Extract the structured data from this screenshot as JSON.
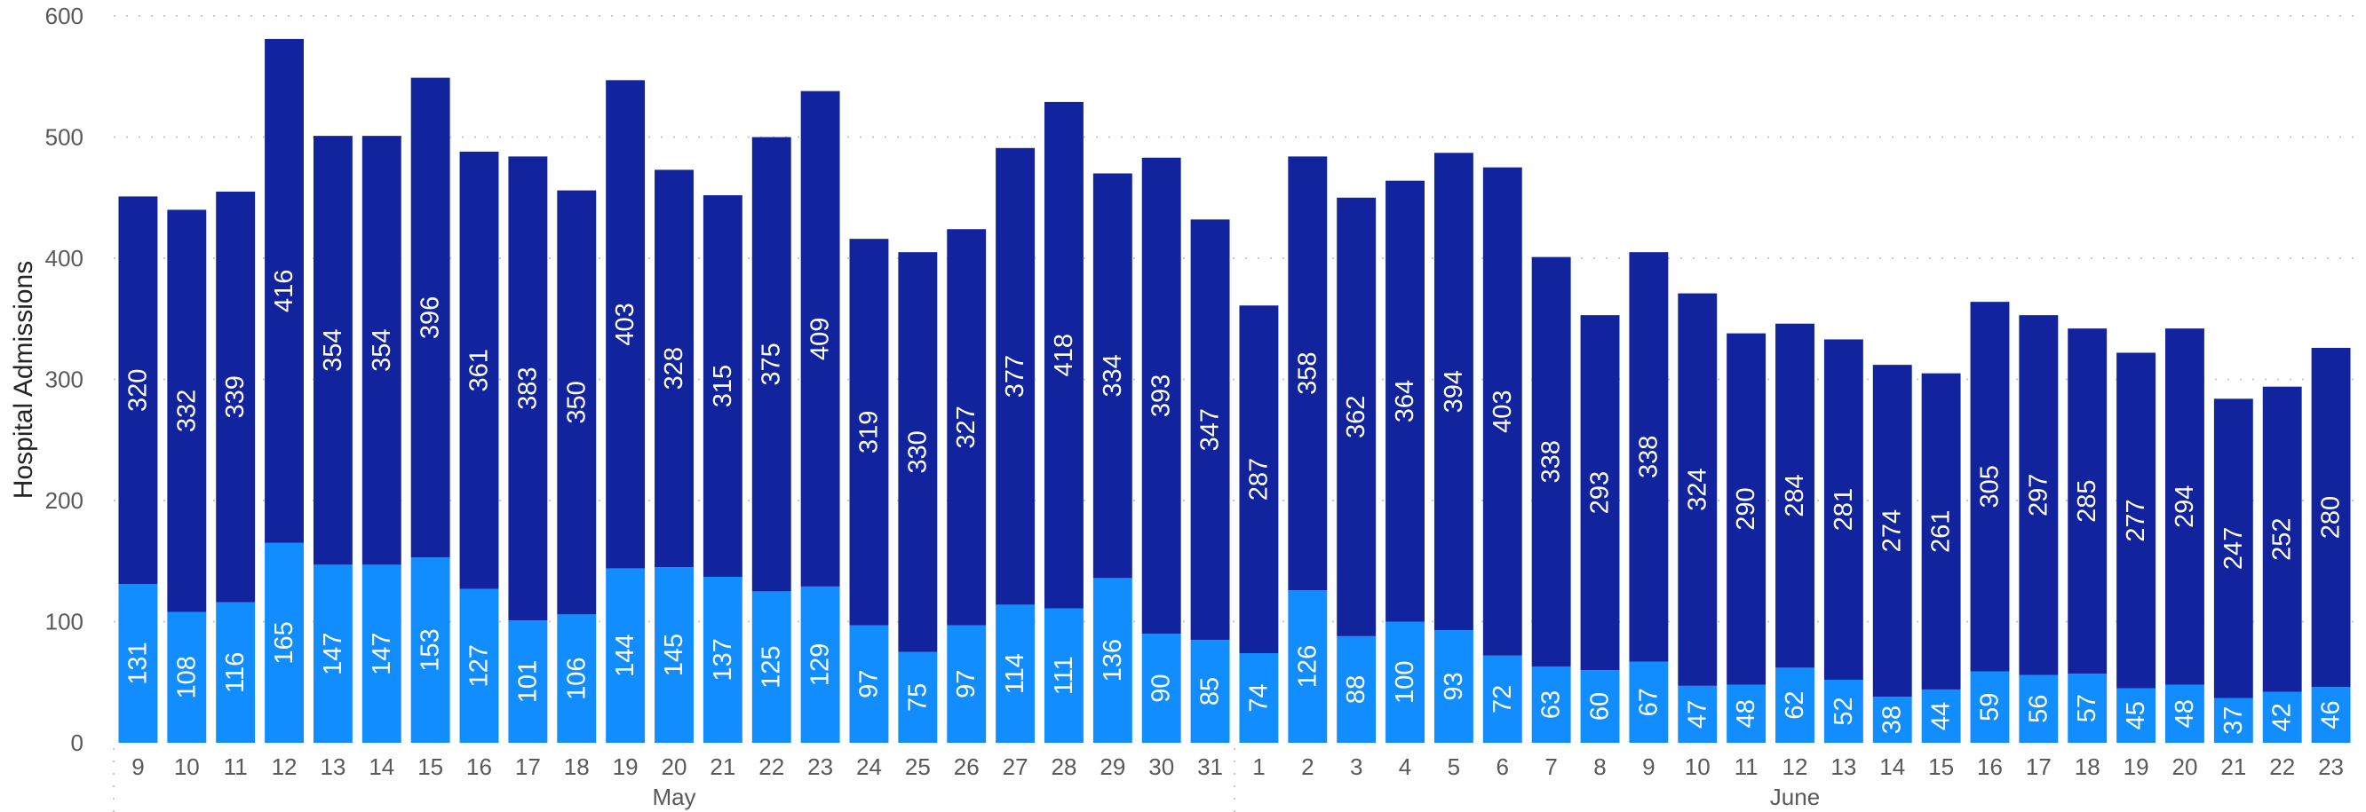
{
  "chart_data": {
    "type": "bar",
    "stacked": true,
    "title": "",
    "xlabel": "",
    "ylabel": "Hospital Admissions",
    "ylim": [
      0,
      600
    ],
    "yticks": [
      0,
      100,
      200,
      300,
      400,
      500,
      600
    ],
    "grid": true,
    "legend": "none",
    "categories": [
      "9",
      "10",
      "11",
      "12",
      "13",
      "14",
      "15",
      "16",
      "17",
      "18",
      "19",
      "20",
      "21",
      "22",
      "23",
      "24",
      "25",
      "26",
      "27",
      "28",
      "29",
      "30",
      "31",
      "1",
      "2",
      "3",
      "4",
      "5",
      "6",
      "7",
      "8",
      "9",
      "10",
      "11",
      "12",
      "13",
      "14",
      "15",
      "16",
      "17",
      "18",
      "19",
      "20",
      "21",
      "22",
      "23"
    ],
    "month_groups": [
      {
        "label": "May",
        "count": 23
      },
      {
        "label": "June",
        "count": 23
      }
    ],
    "series": [
      {
        "color": "#118dff",
        "values": [
          131,
          108,
          116,
          165,
          147,
          147,
          153,
          127,
          101,
          106,
          144,
          145,
          137,
          125,
          129,
          97,
          75,
          97,
          114,
          111,
          136,
          90,
          85,
          74,
          126,
          88,
          100,
          93,
          72,
          63,
          60,
          67,
          47,
          48,
          62,
          52,
          38,
          44,
          59,
          56,
          57,
          45,
          48,
          37,
          42,
          46
        ]
      },
      {
        "color": "#12239e",
        "values": [
          320,
          332,
          339,
          416,
          354,
          354,
          396,
          361,
          383,
          350,
          403,
          328,
          315,
          375,
          409,
          319,
          330,
          327,
          377,
          418,
          334,
          393,
          347,
          287,
          358,
          362,
          364,
          394,
          403,
          338,
          293,
          338,
          324,
          290,
          284,
          281,
          274,
          261,
          305,
          297,
          285,
          277,
          294,
          247,
          252,
          280
        ]
      }
    ]
  }
}
